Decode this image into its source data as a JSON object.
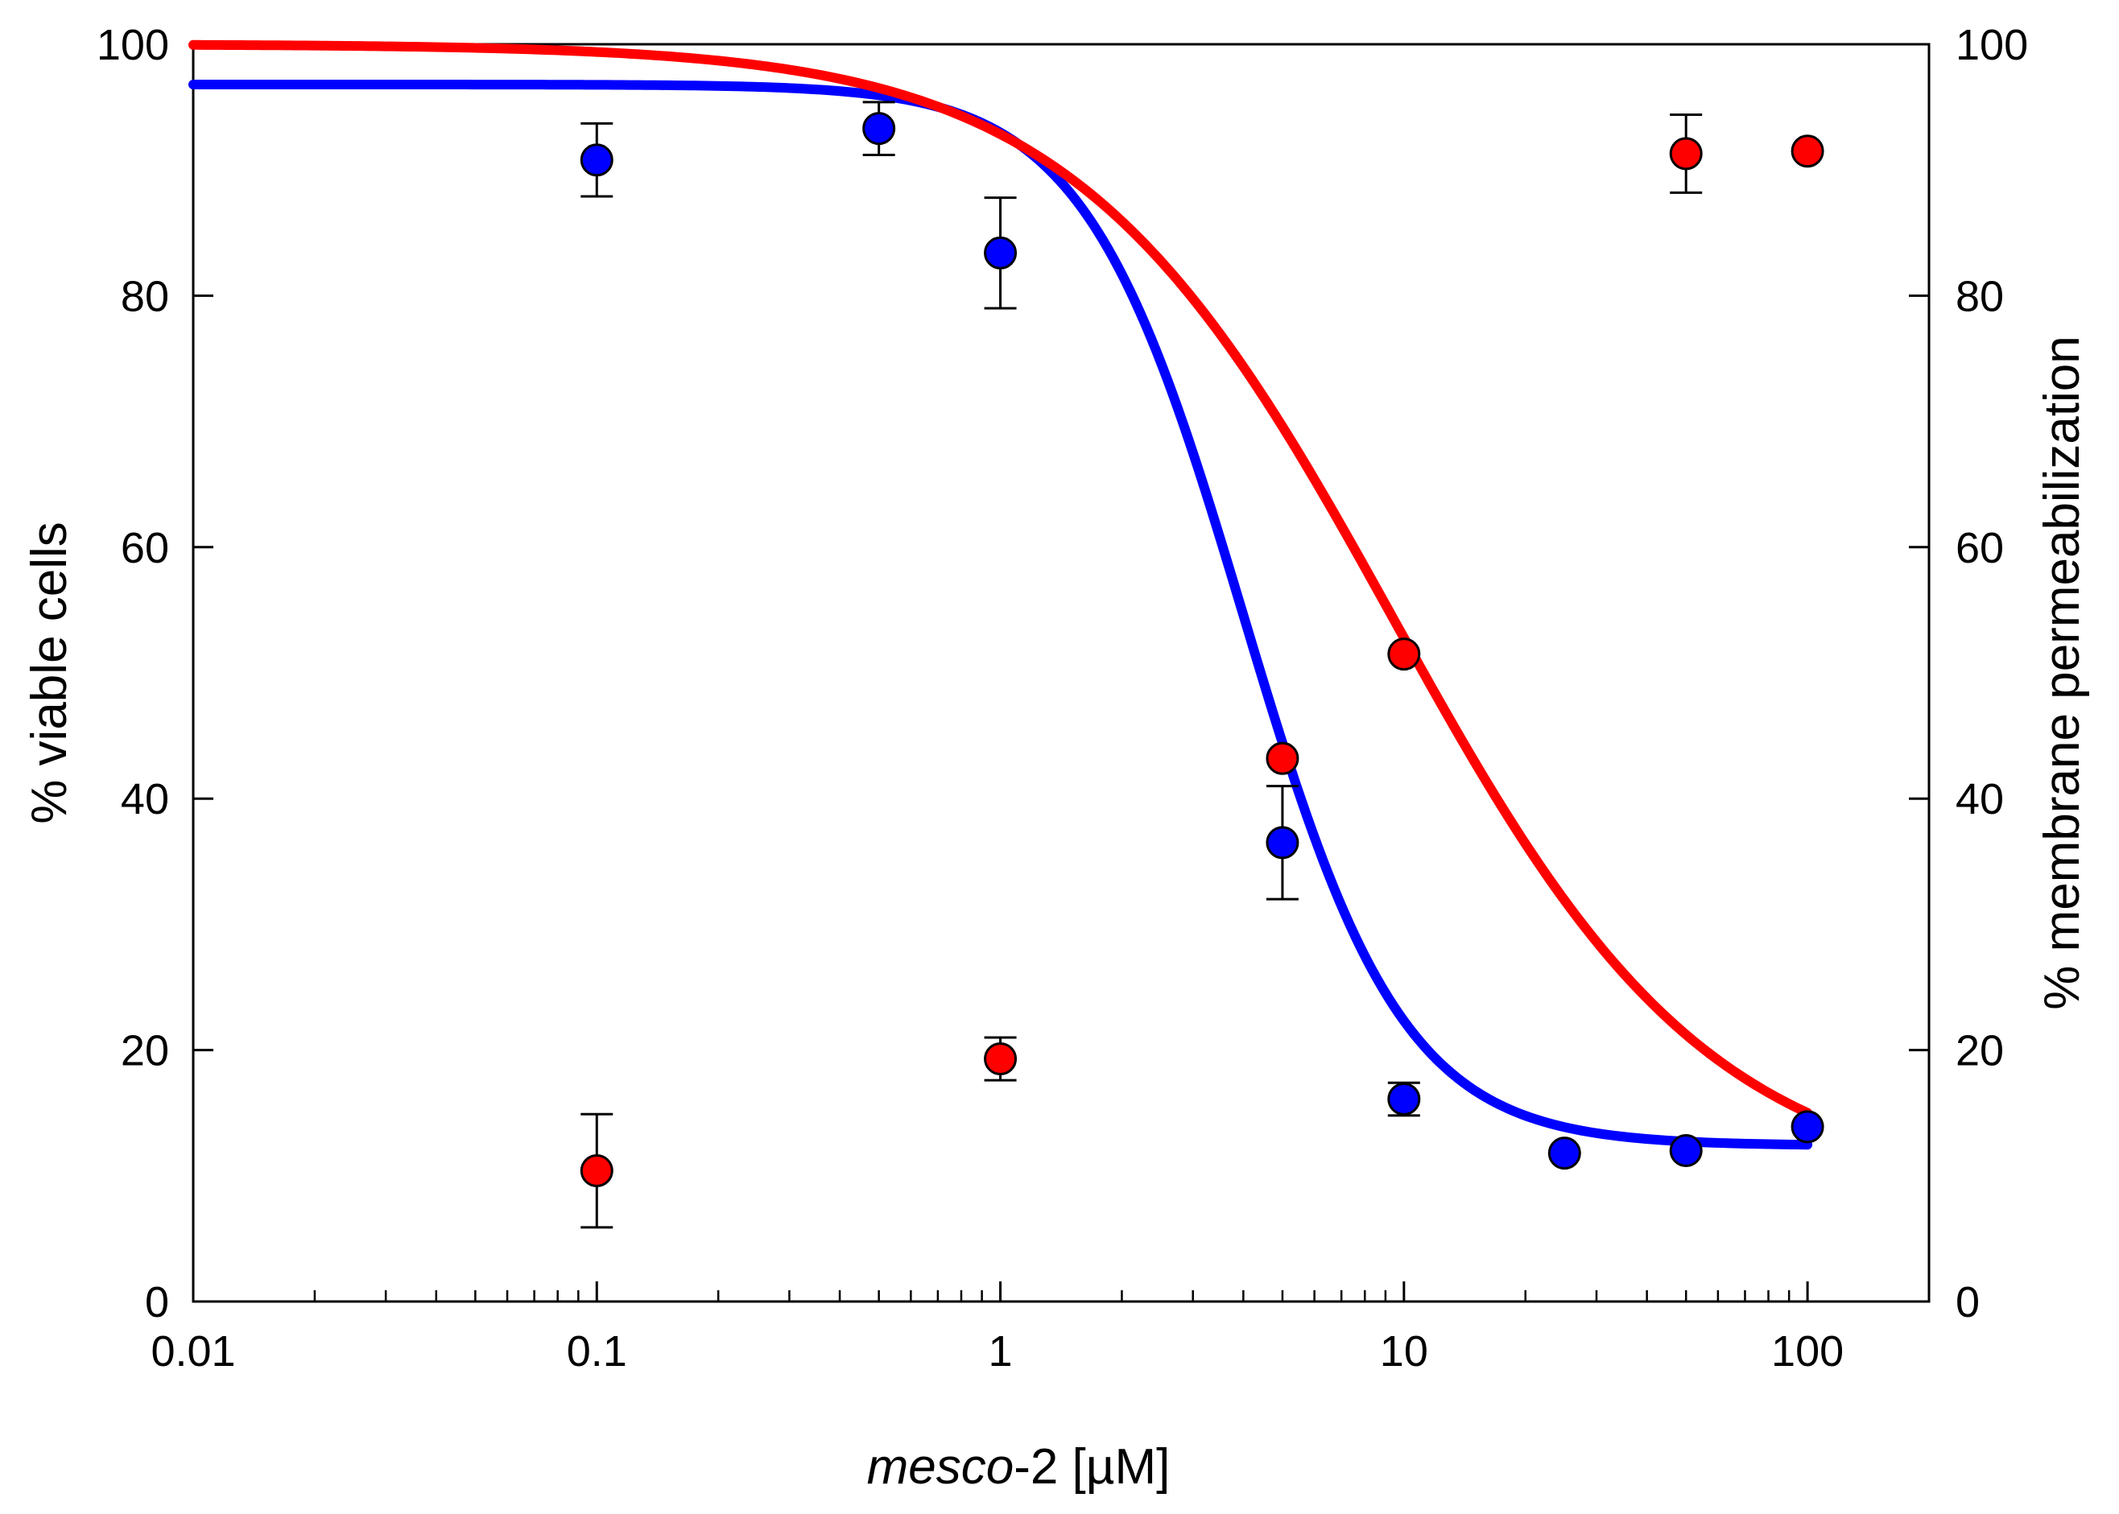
{
  "chart_data": {
    "type": "scatter",
    "xscale": "log",
    "xlim": [
      0.01,
      200
    ],
    "ylim": [
      0,
      100
    ],
    "y2lim": [
      0,
      100
    ],
    "xlabel_italic": "mesco",
    "xlabel_rest": "-2 [µM]",
    "ylabel": "% viable cells",
    "y2label": "% membrane permeabilization",
    "x_ticks": [
      {
        "value": 0.01,
        "label": "0.01"
      },
      {
        "value": 0.1,
        "label": "0.1"
      },
      {
        "value": 1,
        "label": "1"
      },
      {
        "value": 10,
        "label": "10"
      },
      {
        "value": 100,
        "label": "100"
      }
    ],
    "y_ticks": [
      {
        "value": 0,
        "label": "0"
      },
      {
        "value": 20,
        "label": "20"
      },
      {
        "value": 40,
        "label": "40"
      },
      {
        "value": 60,
        "label": "60"
      },
      {
        "value": 80,
        "label": "80"
      },
      {
        "value": 100,
        "label": "100"
      }
    ],
    "y2_ticks": [
      {
        "value": 0,
        "label": "0"
      },
      {
        "value": 20,
        "label": "20"
      },
      {
        "value": 40,
        "label": "40"
      },
      {
        "value": 60,
        "label": "60"
      },
      {
        "value": 80,
        "label": "80"
      },
      {
        "value": 100,
        "label": "100"
      }
    ],
    "series": [
      {
        "name": "viable cells",
        "axis": "left",
        "color": "#0000ff",
        "x": [
          0.1,
          0.5,
          1,
          5,
          10,
          25,
          50,
          100
        ],
        "y": [
          90.8,
          93.3,
          83.4,
          36.5,
          16.1,
          11.8,
          12.0,
          13.9
        ],
        "err": [
          2.9,
          2.1,
          4.4,
          4.5,
          1.3,
          0.0,
          0.0,
          0.0
        ],
        "fit": {
          "model": "logistic",
          "top": 96.8,
          "bottom": 12.4,
          "ec50": 4.0,
          "hill": 2.2,
          "x_from": 0.01,
          "x_to": 100
        }
      },
      {
        "name": "membrane permeabilization",
        "axis": "right",
        "color": "#ff0000",
        "x": [
          0.1,
          1,
          5,
          10,
          50,
          100
        ],
        "y": [
          10.4,
          19.3,
          43.2,
          51.5,
          91.3,
          91.5
        ],
        "err": [
          4.5,
          1.7,
          0.0,
          0.0,
          3.1,
          0.0
        ],
        "fit": {
          "model": "logistic",
          "top": 100.0,
          "bottom": 8.7,
          "ec50": 9.4,
          "hill": 1.1,
          "x_from": 0.01,
          "x_to": 100
        }
      }
    ]
  }
}
